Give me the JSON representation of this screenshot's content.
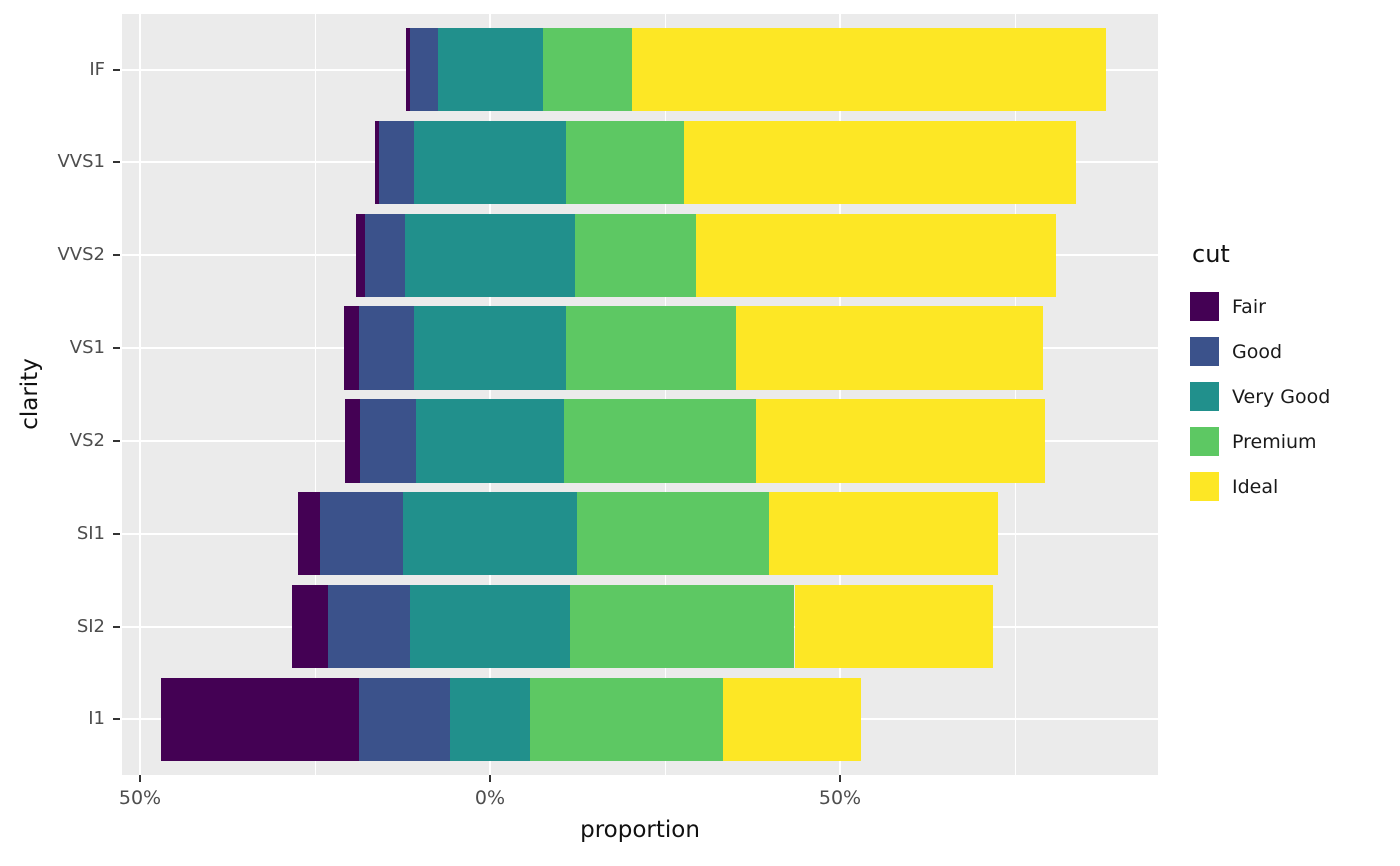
{
  "chart_data": {
    "type": "bar",
    "orientation": "horizontal",
    "stacking": "likert-centered",
    "title": "",
    "xlabel": "proportion",
    "ylabel": "clarity",
    "categories": [
      "IF",
      "VVS1",
      "VVS2",
      "VS1",
      "VS2",
      "SI1",
      "SI2",
      "I1"
    ],
    "series": [
      {
        "name": "Fair",
        "color": "#440154",
        "values": [
          0.5,
          0.5,
          1.4,
          2.1,
          2.1,
          3.1,
          5.1,
          28.3
        ]
      },
      {
        "name": "Good",
        "color": "#3B528B",
        "values": [
          4.0,
          5.1,
          5.6,
          7.9,
          8.0,
          11.9,
          11.8,
          13.0
        ]
      },
      {
        "name": "Very Good",
        "color": "#21908C",
        "values": [
          15.0,
          21.6,
          24.4,
          21.7,
          21.1,
          24.8,
          22.8,
          11.3
        ]
      },
      {
        "name": "Premium",
        "color": "#5DC863",
        "values": [
          12.8,
          16.9,
          17.2,
          24.3,
          27.4,
          27.4,
          32.1,
          27.7
        ]
      },
      {
        "name": "Ideal",
        "color": "#FDE725",
        "values": [
          67.7,
          56.0,
          51.4,
          43.9,
          41.4,
          32.8,
          28.3,
          19.7
        ]
      }
    ],
    "x_ticks": [
      {
        "value": -50,
        "label": "50%"
      },
      {
        "value": 0,
        "label": "0%"
      },
      {
        "value": 50,
        "label": "50%"
      }
    ],
    "x_minor_ticks": [
      -25,
      25,
      75
    ],
    "x_unit": "percent",
    "grid": true,
    "legend": {
      "title": "cut",
      "position": "right"
    },
    "panel_background": "#EBEBEB"
  }
}
